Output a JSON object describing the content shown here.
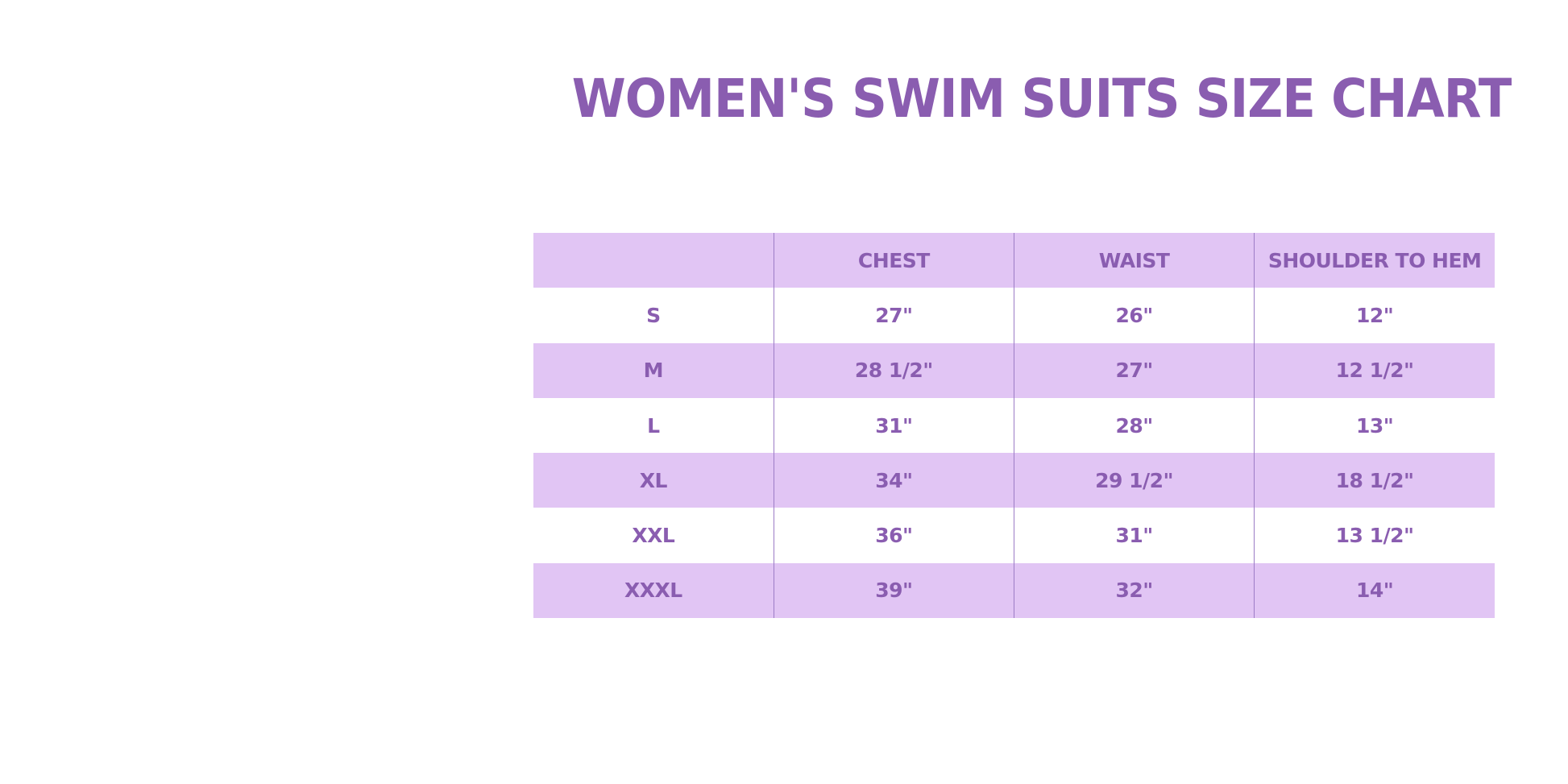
{
  "title": "WOMEN'S SWIM SUITS SIZE CHART",
  "table": {
    "header": [
      "CHEST",
      "WAIST",
      "SHOULDER TO HEM"
    ],
    "rows": [
      [
        "S",
        "27\"",
        "26\"",
        "12\""
      ],
      [
        "M",
        "28 1/2\"",
        "27\"",
        "12 1/2\""
      ],
      [
        "L",
        "31\"",
        "28\"",
        "13\""
      ],
      [
        "XL",
        "34\"",
        "29 1/2\"",
        "18 1/2\""
      ],
      [
        "XXL",
        "36\"",
        "31\"",
        "13 1/2\""
      ],
      [
        "XXXL",
        "39\"",
        "32\"",
        "14\""
      ]
    ]
  }
}
